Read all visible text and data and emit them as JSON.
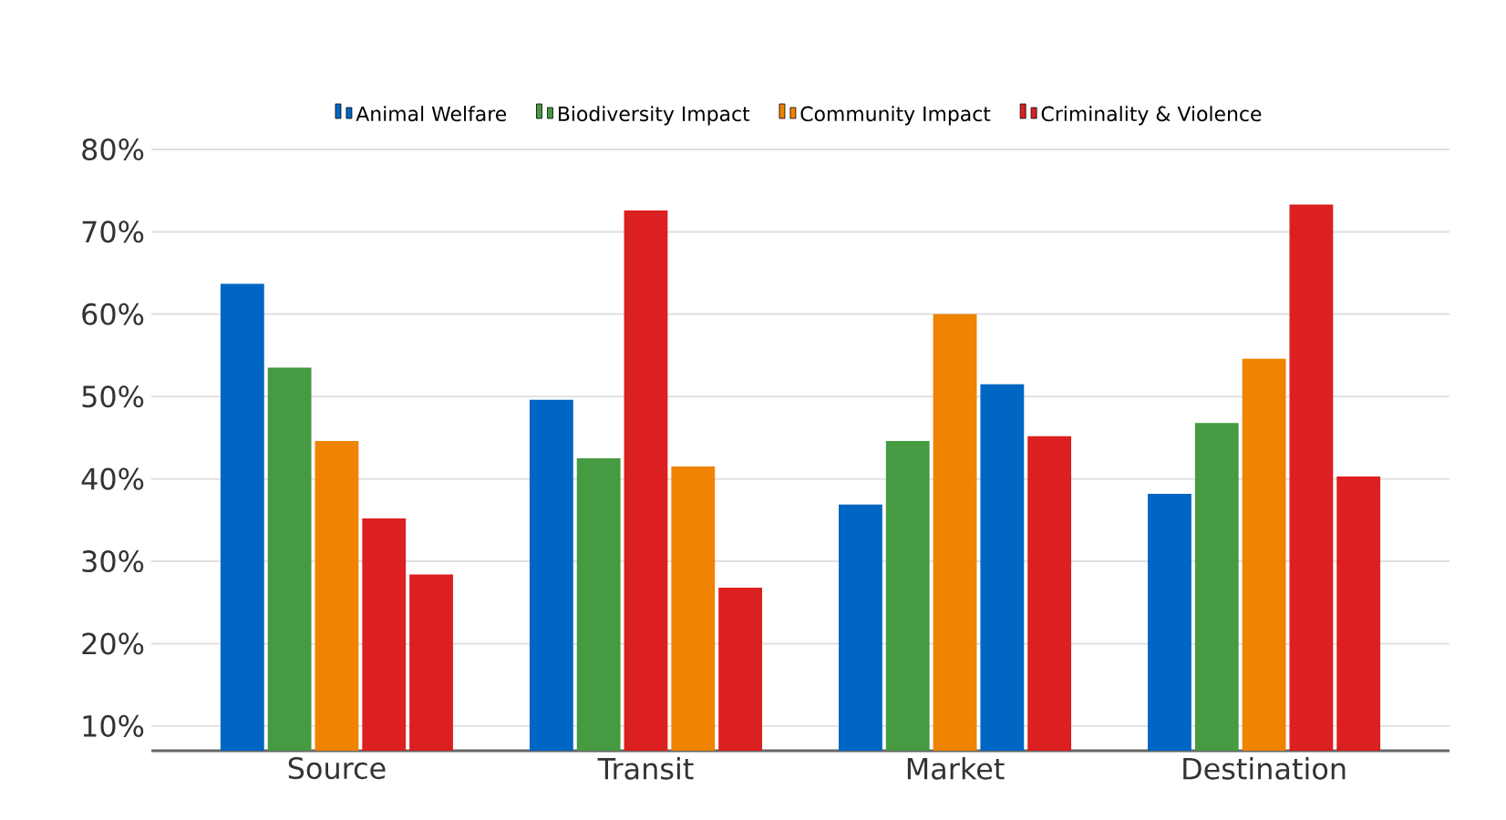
{
  "chart_data": {
    "type": "bar",
    "categories": [
      "Source",
      "Transit",
      "Market",
      "Destination"
    ],
    "series": [
      {
        "name": "Animal Welfare",
        "color": "#0066c4",
        "values": [
          63.7,
          49.6,
          36.9,
          38.2
        ]
      },
      {
        "name": "Biodiversity Impact",
        "color": "#469a41",
        "values": [
          53.5,
          42.5,
          44.6,
          46.8
        ]
      },
      {
        "name": "Community Impact",
        "colors": [
          "#f08300",
          "#dc1f20",
          "#f08300",
          "#f08300"
        ],
        "values": [
          44.6,
          72.6,
          60,
          54.6
        ]
      },
      {
        "colors": [
          "#dc1f20",
          "#f08300",
          "#0066c4",
          "#dc1f20"
        ],
        "values": [
          35.2,
          41.5,
          51.5,
          73.3
        ]
      },
      {
        "name": "Criminality & Violence",
        "color": "#dc1f20",
        "values": [
          28.4,
          26.8,
          45.2,
          40.3
        ]
      }
    ],
    "ylim": [
      7,
      80
    ],
    "yticks": [
      {
        "value": 10,
        "label": "10%"
      },
      {
        "value": 20,
        "label": "20%"
      },
      {
        "value": 30,
        "label": "30%"
      },
      {
        "value": 40,
        "label": "40%"
      },
      {
        "value": 50,
        "label": "50%"
      },
      {
        "value": 60,
        "label": "60%"
      },
      {
        "value": 70,
        "label": "70%"
      },
      {
        "value": 80,
        "label": "80%"
      }
    ],
    "grid": "y",
    "legend": "top"
  }
}
